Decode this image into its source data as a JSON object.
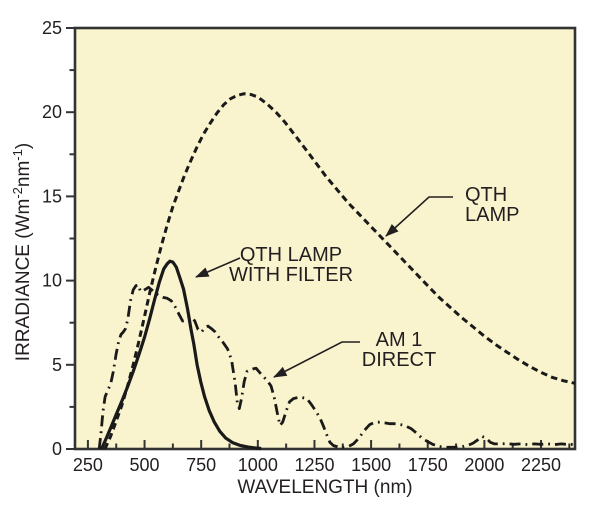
{
  "figure": {
    "page_background": "#ffffff",
    "plot_background": "#faf4ce",
    "frame_color": "#333333",
    "curve_color": "#1a1a1a",
    "text_color": "#231f20"
  },
  "axes": {
    "x": {
      "title": "WAVELENGTH (nm)",
      "min": 193,
      "max": 2400,
      "major_ticks": [
        250,
        500,
        750,
        1000,
        1250,
        1500,
        1750,
        2000,
        2250
      ],
      "major_tick_labels": [
        "250",
        "500",
        "750",
        "1000",
        "1250",
        "1500",
        "1750",
        "2000",
        "2250"
      ],
      "minor_ticks": [
        375,
        625,
        875,
        1125,
        1375,
        1625,
        1875,
        2125,
        2375
      ]
    },
    "y": {
      "title_parts": {
        "p1": "IRRADIANCE (Wm",
        "p2": "-2",
        "p3": "nm",
        "p4": "-1",
        "p5": ")"
      },
      "min": 0,
      "max": 25,
      "major_ticks": [
        0,
        5,
        10,
        15,
        20,
        25
      ],
      "major_tick_labels": [
        "0",
        "5",
        "10",
        "15",
        "20",
        "25"
      ],
      "minor_ticks": [
        2.5,
        7.5,
        12.5,
        17.5,
        22.5
      ]
    }
  },
  "chart_data": {
    "type": "line",
    "title": "",
    "xlabel": "WAVELENGTH (nm)",
    "ylabel": "IRRADIANCE (Wm-2nm-1)",
    "xlim": [
      193,
      2400
    ],
    "ylim": [
      0,
      25
    ],
    "grid": false,
    "legend": "inline annotations with arrows",
    "series": [
      {
        "name": "QTH LAMP",
        "style": "dashed",
        "points": [
          [
            325,
            0
          ],
          [
            350,
            0.75
          ],
          [
            375,
            1.65
          ],
          [
            400,
            2.6
          ],
          [
            425,
            3.75
          ],
          [
            450,
            5.0
          ],
          [
            475,
            6.4
          ],
          [
            500,
            7.9
          ],
          [
            525,
            9.4
          ],
          [
            550,
            10.8
          ],
          [
            575,
            12.1
          ],
          [
            600,
            13.3
          ],
          [
            625,
            14.4
          ],
          [
            650,
            15.3
          ],
          [
            675,
            16.2
          ],
          [
            700,
            17.0
          ],
          [
            730,
            17.9
          ],
          [
            760,
            18.7
          ],
          [
            790,
            19.35
          ],
          [
            820,
            19.95
          ],
          [
            850,
            20.45
          ],
          [
            880,
            20.8
          ],
          [
            910,
            21.0
          ],
          [
            940,
            21.1
          ],
          [
            970,
            21.05
          ],
          [
            1000,
            20.9
          ],
          [
            1040,
            20.5
          ],
          [
            1080,
            20.0
          ],
          [
            1120,
            19.4
          ],
          [
            1160,
            18.7
          ],
          [
            1200,
            18.0
          ],
          [
            1250,
            17.1
          ],
          [
            1300,
            16.2
          ],
          [
            1350,
            15.4
          ],
          [
            1400,
            14.6
          ],
          [
            1450,
            13.9
          ],
          [
            1500,
            13.2
          ],
          [
            1550,
            12.5
          ],
          [
            1600,
            11.8
          ],
          [
            1650,
            11.1
          ],
          [
            1700,
            10.4
          ],
          [
            1750,
            9.7
          ],
          [
            1800,
            9.0
          ],
          [
            1850,
            8.4
          ],
          [
            1900,
            7.8
          ],
          [
            1950,
            7.25
          ],
          [
            2000,
            6.7
          ],
          [
            2050,
            6.2
          ],
          [
            2100,
            5.75
          ],
          [
            2150,
            5.3
          ],
          [
            2200,
            4.9
          ],
          [
            2250,
            4.55
          ],
          [
            2300,
            4.25
          ],
          [
            2350,
            4.05
          ],
          [
            2400,
            3.9
          ]
        ]
      },
      {
        "name": "QTH LAMP WITH FILTER",
        "style": "solid",
        "points": [
          [
            310,
            0
          ],
          [
            330,
            0.6
          ],
          [
            352,
            1.3
          ],
          [
            375,
            2.05
          ],
          [
            400,
            2.85
          ],
          [
            425,
            3.7
          ],
          [
            450,
            4.6
          ],
          [
            475,
            5.6
          ],
          [
            500,
            6.65
          ],
          [
            522,
            7.7
          ],
          [
            545,
            8.9
          ],
          [
            565,
            9.9
          ],
          [
            585,
            10.7
          ],
          [
            600,
            11.0
          ],
          [
            612,
            11.15
          ],
          [
            625,
            11.1
          ],
          [
            640,
            10.8
          ],
          [
            655,
            10.2
          ],
          [
            672,
            9.5
          ],
          [
            690,
            8.3
          ],
          [
            705,
            7.1
          ],
          [
            718,
            6.2
          ],
          [
            732,
            5.0
          ],
          [
            748,
            4.0
          ],
          [
            765,
            3.1
          ],
          [
            785,
            2.3
          ],
          [
            808,
            1.6
          ],
          [
            832,
            1.05
          ],
          [
            858,
            0.65
          ],
          [
            888,
            0.38
          ],
          [
            920,
            0.22
          ],
          [
            955,
            0.12
          ],
          [
            990,
            0.06
          ],
          [
            1015,
            0.03
          ]
        ]
      },
      {
        "name": "AM 1 DIRECT",
        "style": "dashdot",
        "points": [
          [
            300,
            0
          ],
          [
            308,
            1.0
          ],
          [
            316,
            2.2
          ],
          [
            326,
            3.1
          ],
          [
            338,
            3.5
          ],
          [
            350,
            3.85
          ],
          [
            362,
            4.6
          ],
          [
            374,
            5.6
          ],
          [
            386,
            6.4
          ],
          [
            396,
            6.8
          ],
          [
            406,
            6.95
          ],
          [
            416,
            7.15
          ],
          [
            426,
            7.7
          ],
          [
            438,
            8.8
          ],
          [
            450,
            9.45
          ],
          [
            462,
            9.7
          ],
          [
            472,
            9.75
          ],
          [
            482,
            9.35
          ],
          [
            494,
            9.4
          ],
          [
            506,
            9.5
          ],
          [
            518,
            9.6
          ],
          [
            532,
            9.45
          ],
          [
            548,
            9.25
          ],
          [
            565,
            9.1
          ],
          [
            582,
            9.0
          ],
          [
            600,
            8.95
          ],
          [
            618,
            8.8
          ],
          [
            635,
            8.45
          ],
          [
            652,
            8.0
          ],
          [
            668,
            7.6
          ],
          [
            682,
            7.65
          ],
          [
            696,
            7.8
          ],
          [
            710,
            7.8
          ],
          [
            722,
            7.6
          ],
          [
            736,
            7.1
          ],
          [
            752,
            6.95
          ],
          [
            766,
            7.2
          ],
          [
            780,
            7.3
          ],
          [
            795,
            7.15
          ],
          [
            812,
            6.95
          ],
          [
            830,
            6.6
          ],
          [
            848,
            6.3
          ],
          [
            866,
            5.95
          ],
          [
            884,
            5.3
          ],
          [
            900,
            3.9
          ],
          [
            910,
            2.7
          ],
          [
            918,
            2.4
          ],
          [
            928,
            3.0
          ],
          [
            940,
            4.0
          ],
          [
            952,
            4.6
          ],
          [
            965,
            4.7
          ],
          [
            978,
            4.75
          ],
          [
            992,
            4.8
          ],
          [
            1008,
            4.55
          ],
          [
            1025,
            4.3
          ],
          [
            1042,
            4.05
          ],
          [
            1058,
            3.75
          ],
          [
            1072,
            3.1
          ],
          [
            1085,
            2.2
          ],
          [
            1098,
            1.4
          ],
          [
            1110,
            1.6
          ],
          [
            1124,
            2.2
          ],
          [
            1140,
            2.8
          ],
          [
            1158,
            3.0
          ],
          [
            1176,
            3.05
          ],
          [
            1196,
            3.05
          ],
          [
            1216,
            3.0
          ],
          [
            1236,
            2.65
          ],
          [
            1256,
            2.25
          ],
          [
            1274,
            1.85
          ],
          [
            1290,
            1.35
          ],
          [
            1304,
            0.85
          ],
          [
            1318,
            0.4
          ],
          [
            1334,
            0.2
          ],
          [
            1355,
            0.12
          ],
          [
            1378,
            0.1
          ],
          [
            1400,
            0.15
          ],
          [
            1422,
            0.3
          ],
          [
            1446,
            0.65
          ],
          [
            1470,
            1.1
          ],
          [
            1494,
            1.45
          ],
          [
            1515,
            1.58
          ],
          [
            1538,
            1.6
          ],
          [
            1560,
            1.55
          ],
          [
            1584,
            1.5
          ],
          [
            1608,
            1.5
          ],
          [
            1630,
            1.45
          ],
          [
            1655,
            1.35
          ],
          [
            1678,
            1.2
          ],
          [
            1700,
            0.95
          ],
          [
            1724,
            0.65
          ],
          [
            1748,
            0.45
          ],
          [
            1772,
            0.28
          ],
          [
            1800,
            0.15
          ],
          [
            1830,
            0.1
          ],
          [
            1862,
            0.1
          ],
          [
            1895,
            0.12
          ],
          [
            1925,
            0.2
          ],
          [
            1950,
            0.35
          ],
          [
            1972,
            0.55
          ],
          [
            1990,
            0.75
          ],
          [
            2008,
            0.65
          ],
          [
            2026,
            0.4
          ],
          [
            2045,
            0.3
          ],
          [
            2070,
            0.3
          ],
          [
            2100,
            0.32
          ],
          [
            2130,
            0.28
          ],
          [
            2160,
            0.3
          ],
          [
            2190,
            0.26
          ],
          [
            2220,
            0.3
          ],
          [
            2250,
            0.28
          ],
          [
            2280,
            0.3
          ],
          [
            2310,
            0.26
          ],
          [
            2340,
            0.3
          ],
          [
            2370,
            0.27
          ],
          [
            2400,
            0.28
          ]
        ]
      }
    ]
  },
  "annotations": {
    "qth_lamp": {
      "line1": "QTH",
      "line2": "LAMP"
    },
    "qth_filter": {
      "line1": "QTH LAMP",
      "line2": "WITH FILTER"
    },
    "am1": {
      "line1": "AM 1",
      "line2": "DIRECT"
    }
  }
}
